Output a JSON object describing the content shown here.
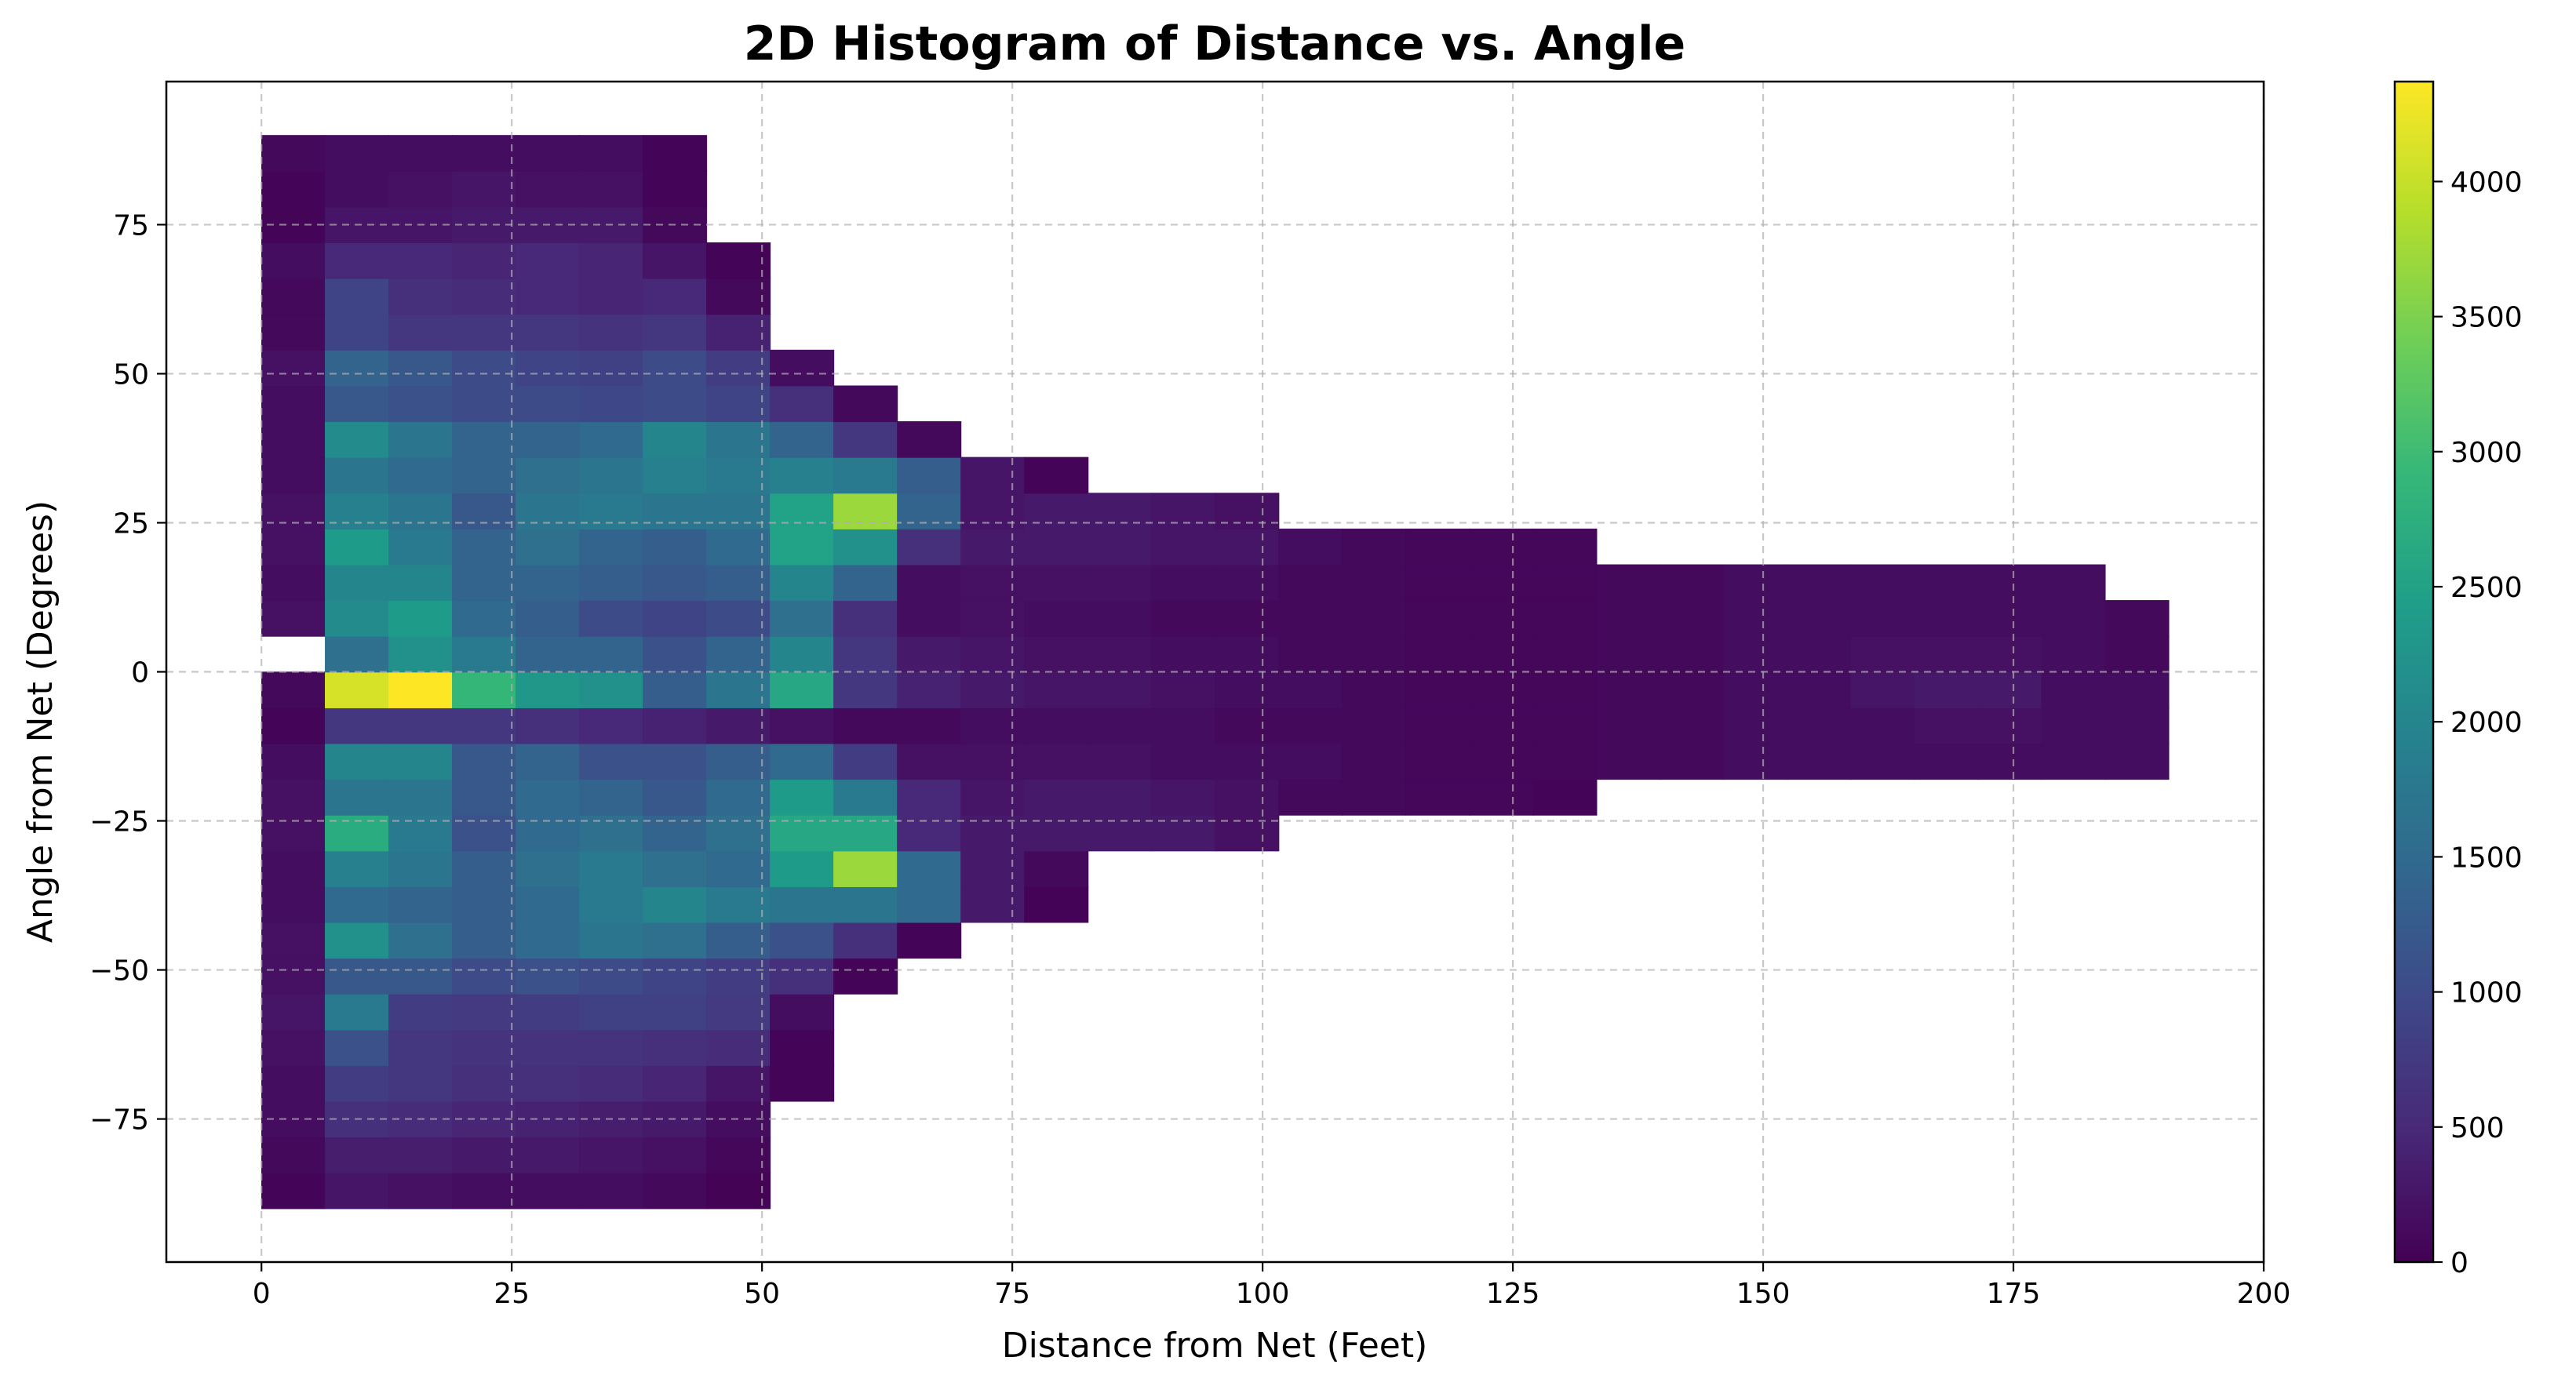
{
  "chart_data": {
    "type": "heatmap",
    "title": "2D Histogram of Distance vs. Angle",
    "xlabel": "Distance from Net (Feet)",
    "ylabel": "Angle from Net (Degrees)",
    "xlim": [
      -9.5,
      200
    ],
    "ylim": [
      -99,
      99
    ],
    "x_ticks": [
      0,
      25,
      50,
      75,
      100,
      125,
      150,
      175,
      200
    ],
    "y_ticks": [
      -75,
      -50,
      -25,
      0,
      25,
      50,
      75
    ],
    "grid": true,
    "colorbar": {
      "cmap": "viridis",
      "min": 0,
      "max": 4370,
      "ticks": [
        0,
        500,
        1000,
        1500,
        2000,
        2500,
        3000,
        3500,
        4000
      ]
    },
    "x_edges": [
      0,
      6.35,
      12.7,
      19.05,
      25.4,
      31.75,
      38.1,
      44.45,
      50.8,
      57.15,
      63.5,
      69.85,
      76.2,
      82.55,
      88.9,
      95.25,
      101.6,
      107.95,
      114.3,
      120.65,
      127.0,
      133.35,
      139.7,
      146.05,
      152.4,
      158.75,
      165.1,
      171.45,
      177.8,
      184.15,
      190.5
    ],
    "y_edges": [
      -90,
      -84,
      -78,
      -72,
      -66,
      -60,
      -54,
      -48,
      -42,
      -36,
      -30,
      -24,
      -18,
      -12,
      -6,
      0,
      6,
      12,
      18,
      24,
      30,
      36,
      42,
      48,
      54,
      60,
      66,
      72,
      78,
      84,
      90
    ],
    "counts": [
      [
        50,
        250,
        200,
        150,
        150,
        150,
        100,
        20,
        null,
        null,
        null,
        null,
        null,
        null,
        null,
        null,
        null,
        null,
        null,
        null,
        null,
        null,
        null,
        null,
        null,
        null,
        null,
        null,
        null,
        null
      ],
      [
        100,
        350,
        350,
        300,
        300,
        250,
        200,
        80,
        null,
        null,
        null,
        null,
        null,
        null,
        null,
        null,
        null,
        null,
        null,
        null,
        null,
        null,
        null,
        null,
        null,
        null,
        null,
        null,
        null,
        null
      ],
      [
        150,
        600,
        550,
        450,
        400,
        350,
        300,
        150,
        null,
        null,
        null,
        null,
        null,
        null,
        null,
        null,
        null,
        null,
        null,
        null,
        null,
        null,
        null,
        null,
        null,
        null,
        null,
        null,
        null,
        null
      ],
      [
        150,
        800,
        700,
        600,
        600,
        550,
        450,
        250,
        50,
        null,
        null,
        null,
        null,
        null,
        null,
        null,
        null,
        null,
        null,
        null,
        null,
        null,
        null,
        null,
        null,
        null,
        null,
        null,
        null,
        null
      ],
      [
        200,
        1100,
        700,
        650,
        650,
        650,
        600,
        550,
        50,
        null,
        null,
        null,
        null,
        null,
        null,
        null,
        null,
        null,
        null,
        null,
        null,
        null,
        null,
        null,
        null,
        null,
        null,
        null,
        null,
        null
      ],
      [
        250,
        1800,
        800,
        750,
        800,
        850,
        850,
        750,
        150,
        null,
        null,
        null,
        null,
        null,
        null,
        null,
        null,
        null,
        null,
        null,
        null,
        null,
        null,
        null,
        null,
        null,
        null,
        null,
        null,
        null
      ],
      [
        200,
        1200,
        1200,
        1000,
        1100,
        1000,
        900,
        800,
        600,
        50,
        null,
        null,
        null,
        null,
        null,
        null,
        null,
        null,
        null,
        null,
        null,
        null,
        null,
        null,
        null,
        null,
        null,
        null,
        null,
        null
      ],
      [
        200,
        2200,
        1600,
        1300,
        1500,
        1700,
        1600,
        1300,
        1100,
        600,
        50,
        null,
        null,
        null,
        null,
        null,
        null,
        null,
        null,
        null,
        null,
        null,
        null,
        null,
        null,
        null,
        null,
        null,
        null,
        null
      ],
      [
        150,
        1500,
        1400,
        1300,
        1500,
        1800,
        2000,
        1800,
        1700,
        1700,
        1500,
        300,
        30,
        null,
        null,
        null,
        null,
        null,
        null,
        null,
        null,
        null,
        null,
        null,
        null,
        null,
        null,
        null,
        null,
        null
      ],
      [
        150,
        1900,
        1700,
        1300,
        1600,
        1800,
        1600,
        1500,
        2400,
        3700,
        1500,
        300,
        100,
        null,
        null,
        null,
        null,
        null,
        null,
        null,
        null,
        null,
        null,
        null,
        null,
        null,
        null,
        null,
        null,
        null
      ],
      [
        200,
        2700,
        1800,
        1100,
        1500,
        1600,
        1400,
        1600,
        2600,
        2600,
        500,
        300,
        300,
        300,
        300,
        200,
        null,
        null,
        null,
        null,
        null,
        null,
        null,
        null,
        null,
        null,
        null,
        null,
        null,
        null
      ],
      [
        200,
        1700,
        1700,
        1200,
        1500,
        1400,
        1200,
        1500,
        2400,
        1800,
        500,
        250,
        300,
        300,
        250,
        200,
        100,
        100,
        80,
        80,
        50,
        null,
        null,
        null,
        null,
        null,
        null,
        null,
        null,
        null
      ],
      [
        150,
        2000,
        2000,
        1200,
        1400,
        1100,
        1100,
        1300,
        1500,
        800,
        200,
        200,
        200,
        200,
        150,
        150,
        150,
        100,
        80,
        80,
        80,
        100,
        100,
        150,
        150,
        150,
        150,
        150,
        150,
        150
      ],
      [
        50,
        700,
        700,
        700,
        600,
        500,
        400,
        300,
        200,
        100,
        100,
        150,
        150,
        150,
        150,
        100,
        100,
        100,
        80,
        80,
        80,
        100,
        100,
        150,
        150,
        150,
        200,
        200,
        150,
        150
      ],
      [
        100,
        4100,
        4370,
        2900,
        2300,
        2200,
        1300,
        1700,
        2600,
        700,
        400,
        300,
        250,
        250,
        200,
        150,
        150,
        100,
        80,
        80,
        80,
        100,
        100,
        150,
        150,
        250,
        300,
        300,
        150,
        150
      ],
      [
        null,
        1600,
        2200,
        1800,
        1400,
        1400,
        1100,
        1400,
        2000,
        700,
        300,
        250,
        200,
        200,
        150,
        150,
        100,
        100,
        80,
        80,
        80,
        100,
        100,
        150,
        150,
        200,
        200,
        200,
        150,
        100
      ],
      [
        200,
        2100,
        2400,
        1500,
        1300,
        1000,
        900,
        1000,
        1600,
        600,
        150,
        200,
        150,
        150,
        100,
        100,
        100,
        100,
        80,
        80,
        80,
        100,
        100,
        150,
        150,
        150,
        150,
        150,
        150,
        100
      ],
      [
        150,
        2000,
        2000,
        1400,
        1400,
        1300,
        1200,
        1300,
        2000,
        1400,
        150,
        200,
        200,
        200,
        150,
        150,
        100,
        100,
        80,
        80,
        80,
        100,
        100,
        150,
        150,
        150,
        150,
        150,
        150,
        null
      ],
      [
        200,
        2400,
        1800,
        1400,
        1600,
        1400,
        1300,
        1500,
        2500,
        2200,
        600,
        300,
        300,
        300,
        250,
        250,
        150,
        100,
        80,
        80,
        80,
        null,
        null,
        null,
        null,
        null,
        null,
        null,
        null,
        null
      ],
      [
        200,
        1900,
        1700,
        1200,
        1700,
        1800,
        1700,
        1700,
        2500,
        3700,
        1400,
        250,
        300,
        300,
        250,
        200,
        null,
        null,
        null,
        null,
        null,
        null,
        null,
        null,
        null,
        null,
        null,
        null,
        null,
        null
      ],
      [
        150,
        1700,
        1500,
        1400,
        1600,
        1700,
        1900,
        1800,
        1900,
        1800,
        1300,
        250,
        50,
        null,
        null,
        null,
        null,
        null,
        null,
        null,
        null,
        null,
        null,
        null,
        null,
        null,
        null,
        null,
        null,
        null
      ],
      [
        150,
        2100,
        1700,
        1400,
        1400,
        1500,
        2000,
        1700,
        1400,
        700,
        100,
        null,
        null,
        null,
        null,
        null,
        null,
        null,
        null,
        null,
        null,
        null,
        null,
        null,
        null,
        null,
        null,
        null,
        null,
        null
      ],
      [
        150,
        1200,
        1100,
        1000,
        1000,
        950,
        1000,
        900,
        600,
        100,
        null,
        null,
        null,
        null,
        null,
        null,
        null,
        null,
        null,
        null,
        null,
        null,
        null,
        null,
        null,
        null,
        null,
        null,
        null,
        null
      ],
      [
        200,
        1400,
        1200,
        1000,
        900,
        850,
        1000,
        800,
        150,
        null,
        null,
        null,
        null,
        null,
        null,
        null,
        null,
        null,
        null,
        null,
        null,
        null,
        null,
        null,
        null,
        null,
        null,
        null,
        null,
        null
      ],
      [
        100,
        900,
        700,
        700,
        700,
        650,
        700,
        400,
        null,
        null,
        null,
        null,
        null,
        null,
        null,
        null,
        null,
        null,
        null,
        null,
        null,
        null,
        null,
        null,
        null,
        null,
        null,
        null,
        null,
        null
      ],
      [
        100,
        900,
        600,
        550,
        500,
        450,
        500,
        100,
        null,
        null,
        null,
        null,
        null,
        null,
        null,
        null,
        null,
        null,
        null,
        null,
        null,
        null,
        null,
        null,
        null,
        null,
        null,
        null,
        null,
        null
      ],
      [
        150,
        500,
        500,
        450,
        500,
        450,
        250,
        50,
        null,
        null,
        null,
        null,
        null,
        null,
        null,
        null,
        null,
        null,
        null,
        null,
        null,
        null,
        null,
        null,
        null,
        null,
        null,
        null,
        null,
        null
      ],
      [
        50,
        250,
        250,
        300,
        300,
        300,
        100,
        null,
        null,
        null,
        null,
        null,
        null,
        null,
        null,
        null,
        null,
        null,
        null,
        null,
        null,
        null,
        null,
        null,
        null,
        null,
        null,
        null,
        null,
        null
      ],
      [
        50,
        150,
        200,
        250,
        200,
        200,
        50,
        null,
        null,
        null,
        null,
        null,
        null,
        null,
        null,
        null,
        null,
        null,
        null,
        null,
        null,
        null,
        null,
        null,
        null,
        null,
        null,
        null,
        null,
        null
      ],
      [
        100,
        150,
        150,
        150,
        150,
        150,
        50,
        null,
        null,
        null,
        null,
        null,
        null,
        null,
        null,
        null,
        null,
        null,
        null,
        null,
        null,
        null,
        null,
        null,
        null,
        null,
        null,
        null,
        null,
        null
      ]
    ]
  }
}
